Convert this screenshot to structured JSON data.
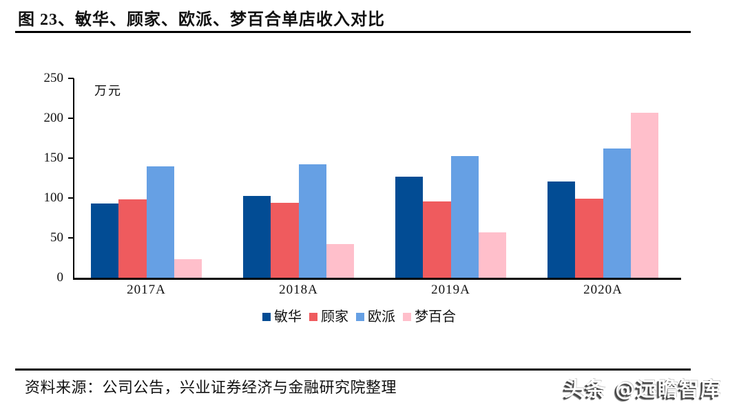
{
  "header": {
    "title": "图 23、敏华、顾家、欧派、梦百合单店收入对比"
  },
  "chart_data": {
    "type": "bar",
    "title": "敏华、顾家、欧派、梦百合单店收入对比",
    "unit_label": "万元",
    "categories": [
      "2017A",
      "2018A",
      "2019A",
      "2020A"
    ],
    "series": [
      {
        "name": "敏华",
        "color": "#024C94",
        "values": [
          93,
          103,
          127,
          121
        ]
      },
      {
        "name": "顾家",
        "color": "#EF5B5E",
        "values": [
          98,
          94,
          96,
          99
        ]
      },
      {
        "name": "欧派",
        "color": "#66A0E4",
        "values": [
          140,
          142,
          153,
          162
        ]
      },
      {
        "name": "梦百合",
        "color": "#FFBFCB",
        "values": [
          23,
          42,
          57,
          207
        ]
      }
    ],
    "ylim": [
      0,
      250
    ],
    "yticks": [
      0,
      50,
      100,
      150,
      200,
      250
    ],
    "grid": false,
    "legend_position": "bottom",
    "axis_color": "#000000"
  },
  "footer": {
    "source": "资料来源：公司公告，兴业证券经济与金融研究院整理",
    "watermark": "头条 @远瞻智库"
  }
}
